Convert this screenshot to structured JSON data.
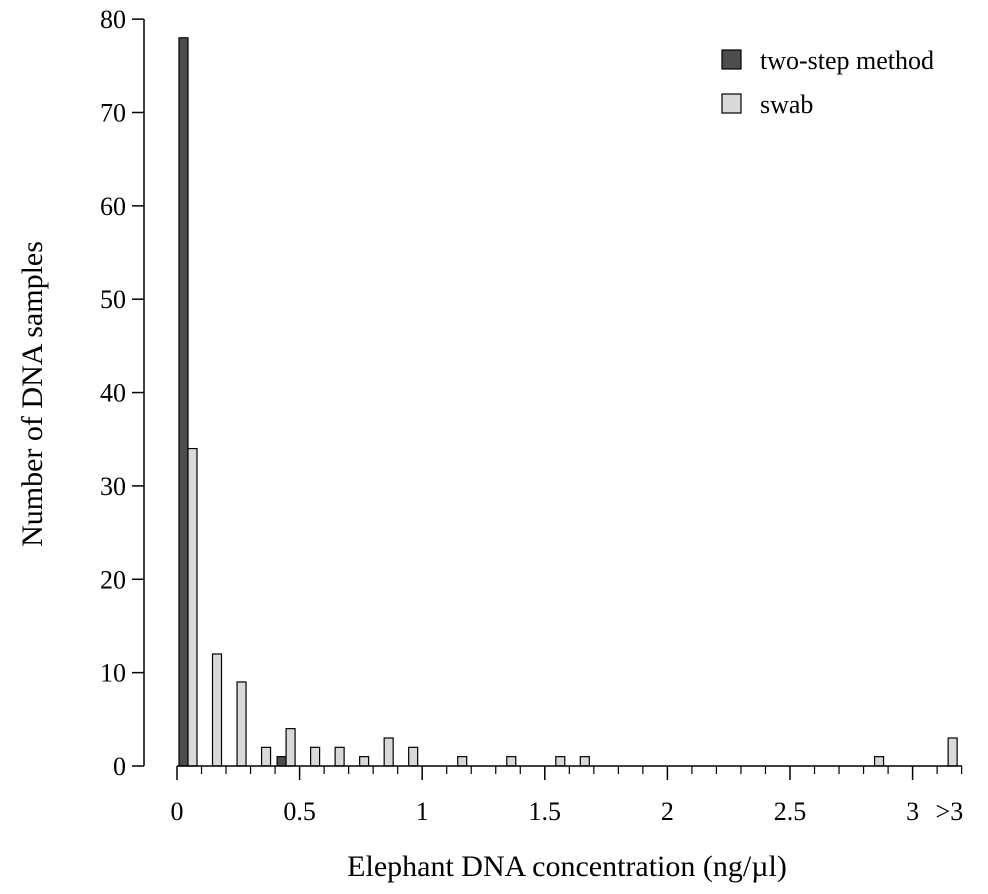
{
  "chart_data": {
    "type": "bar",
    "title": "",
    "xlabel": "Elephant DNA concentration (ng/µl)",
    "ylabel": "Number of DNA samples",
    "ylim": [
      0,
      80
    ],
    "xlim": [
      0,
      3.2
    ],
    "yticks": [
      0,
      10,
      20,
      30,
      40,
      50,
      60,
      70,
      80
    ],
    "xticks": [
      {
        "value": 0,
        "label": "0"
      },
      {
        "value": 0.5,
        "label": "0.5"
      },
      {
        "value": 1,
        "label": "1"
      },
      {
        "value": 1.5,
        "label": "1.5"
      },
      {
        "value": 2,
        "label": "2"
      },
      {
        "value": 2.5,
        "label": "2.5"
      },
      {
        "value": 3,
        "label": "3"
      },
      {
        "value": 3.15,
        "label": ">3"
      }
    ],
    "bin_width": 0.1,
    "grid": false,
    "legend_position": "top-right",
    "series": [
      {
        "name": "two-step method",
        "color": "#4d4d4d",
        "bins": [
          0,
          0.4
        ],
        "values": [
          78,
          1
        ]
      },
      {
        "name": "swab",
        "color": "#d9d9d9",
        "bins": [
          0,
          0.1,
          0.2,
          0.3,
          0.4,
          0.5,
          0.6,
          0.7,
          0.8,
          0.9,
          1.1,
          1.3,
          1.5,
          1.6,
          2.8,
          3.1
        ],
        "values": [
          34,
          12,
          9,
          2,
          4,
          2,
          2,
          1,
          3,
          2,
          1,
          1,
          1,
          1,
          1,
          3
        ]
      }
    ]
  }
}
